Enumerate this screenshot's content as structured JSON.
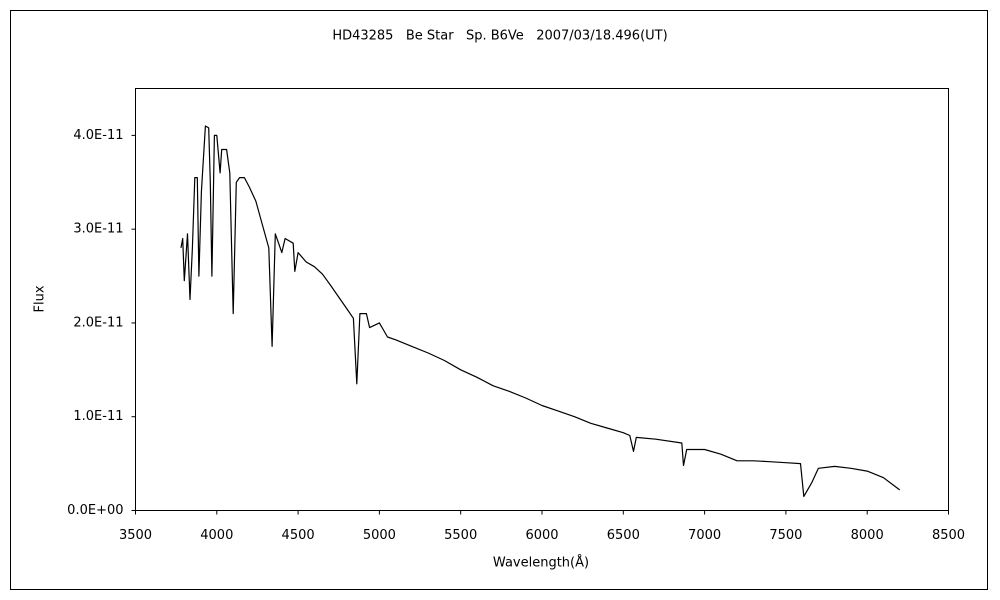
{
  "chart_data": {
    "type": "line",
    "title": "HD43285   Be Star   Sp. B6Ve   2007/03/18.496(UT)",
    "xlabel": "Wavelength(Å)",
    "ylabel": "Flux",
    "xlim": [
      3500,
      8500
    ],
    "xticks": [
      3500,
      4000,
      4500,
      5000,
      5500,
      6000,
      6500,
      7000,
      7500,
      8000,
      8500
    ],
    "ylim": [
      0,
      4.5e-11
    ],
    "yticks": [
      {
        "value": 0,
        "label": "0.0E+00"
      },
      {
        "value": 1e-11,
        "label": "1.0E-11"
      },
      {
        "value": 2e-11,
        "label": "2.0E-11"
      },
      {
        "value": 3e-11,
        "label": "3.0E-11"
      },
      {
        "value": 4e-11,
        "label": "4.0E-11"
      }
    ],
    "grid": false,
    "series": [
      {
        "color": "#000000",
        "x": [
          3780,
          3790,
          3800,
          3820,
          3835,
          3850,
          3865,
          3880,
          3890,
          3905,
          3930,
          3950,
          3960,
          3970,
          3985,
          4000,
          4020,
          4030,
          4060,
          4080,
          4101,
          4120,
          4140,
          4170,
          4200,
          4240,
          4280,
          4320,
          4340,
          4360,
          4380,
          4400,
          4420,
          4470,
          4480,
          4500,
          4550,
          4600,
          4650,
          4700,
          4760,
          4800,
          4840,
          4861,
          4880,
          4920,
          4940,
          5000,
          5050,
          5100,
          5200,
          5300,
          5400,
          5500,
          5600,
          5700,
          5800,
          5900,
          6000,
          6100,
          6200,
          6300,
          6400,
          6500,
          6540,
          6563,
          6580,
          6700,
          6860,
          6870,
          6890,
          7000,
          7100,
          7200,
          7300,
          7400,
          7500,
          7590,
          7610,
          7660,
          7700,
          7800,
          7900,
          8000,
          8100,
          8200
        ],
        "values": [
          2.8e-11,
          2.9e-11,
          2.45e-11,
          2.95e-11,
          2.25e-11,
          2.8e-11,
          3.55e-11,
          3.55e-11,
          2.5e-11,
          3.4e-11,
          4.1e-11,
          4.08e-11,
          3.5e-11,
          2.5e-11,
          4e-11,
          4e-11,
          3.6e-11,
          3.85e-11,
          3.85e-11,
          3.6e-11,
          2.1e-11,
          3.5e-11,
          3.55e-11,
          3.55e-11,
          3.45e-11,
          3.3e-11,
          3.05e-11,
          2.8e-11,
          1.75e-11,
          2.95e-11,
          2.85e-11,
          2.75e-11,
          2.9e-11,
          2.85e-11,
          2.55e-11,
          2.75e-11,
          2.65e-11,
          2.6e-11,
          2.52e-11,
          2.4e-11,
          2.25e-11,
          2.15e-11,
          2.05e-11,
          1.35e-11,
          2.1e-11,
          2.1e-11,
          1.95e-11,
          2e-11,
          1.85e-11,
          1.82e-11,
          1.75e-11,
          1.68e-11,
          1.6e-11,
          1.5e-11,
          1.42e-11,
          1.33e-11,
          1.27e-11,
          1.2e-11,
          1.12e-11,
          1.06e-11,
          1e-11,
          9.3e-12,
          8.8e-12,
          8.3e-12,
          8e-12,
          6.3e-12,
          7.8e-12,
          7.6e-12,
          7.2e-12,
          4.8e-12,
          6.5e-12,
          6.5e-12,
          6e-12,
          5.3e-12,
          5.3e-12,
          5.2e-12,
          5.1e-12,
          5e-12,
          1.5e-12,
          3e-12,
          4.5e-12,
          4.7e-12,
          4.5e-12,
          4.2e-12,
          3.5e-12,
          2.2e-12
        ]
      }
    ]
  }
}
